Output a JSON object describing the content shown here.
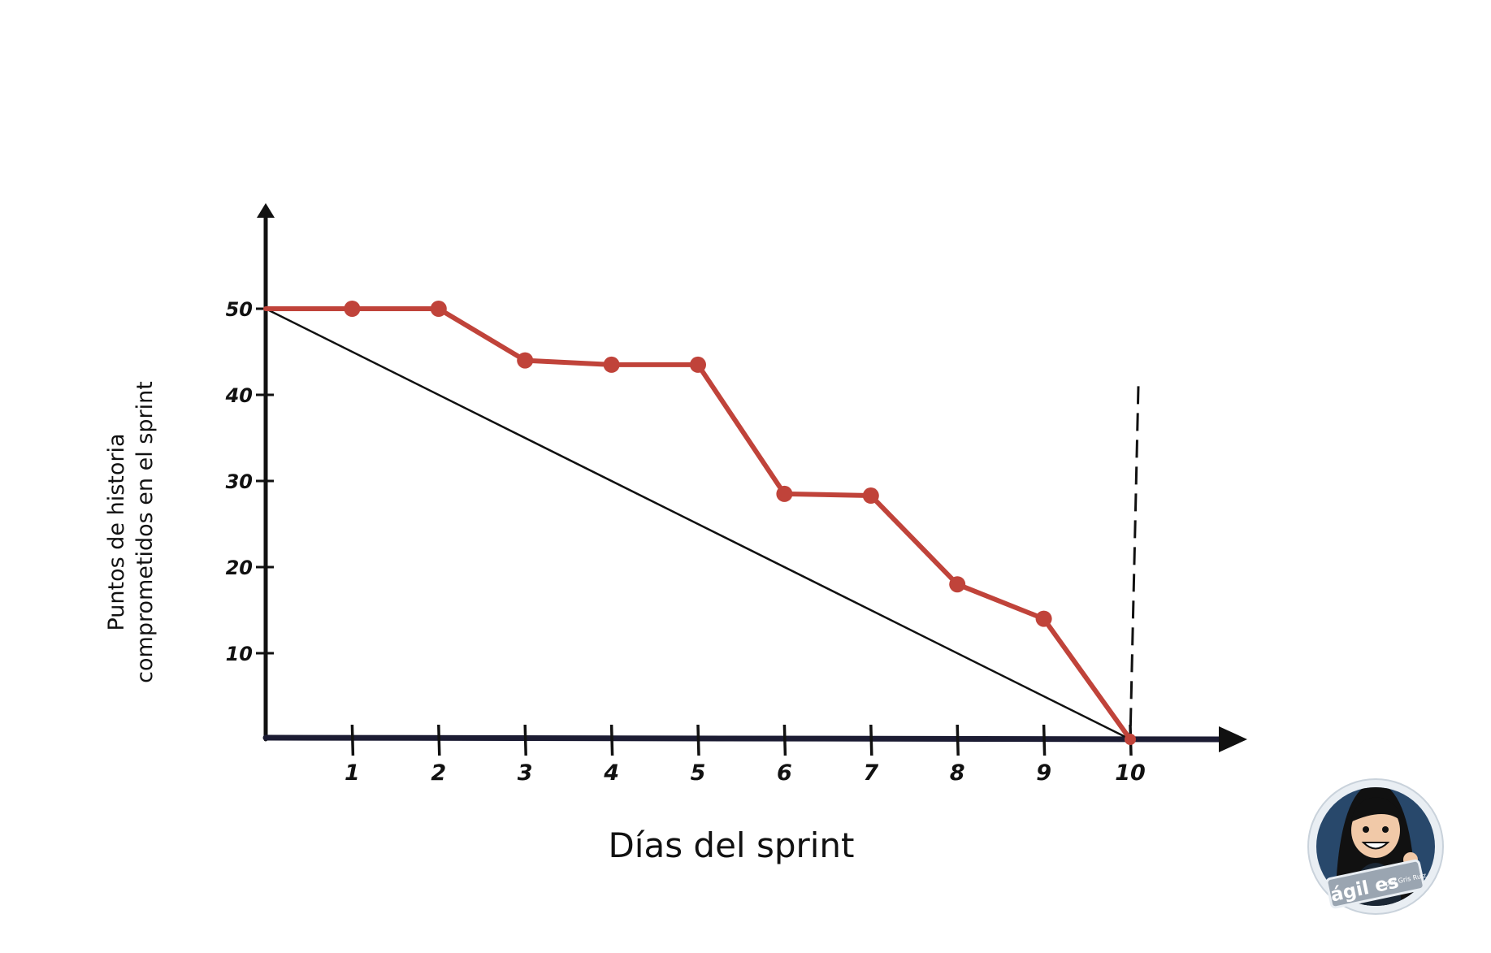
{
  "chart_data": {
    "type": "line",
    "xlabel": "Días del sprint",
    "ylabel_lines": [
      "Puntos de historia",
      "comprometidos en el sprint"
    ],
    "x_ticks": [
      1,
      2,
      3,
      4,
      5,
      6,
      7,
      8,
      9,
      10
    ],
    "y_ticks": [
      10,
      20,
      30,
      40,
      50
    ],
    "xlim": [
      0,
      11.3
    ],
    "ylim": [
      0,
      60
    ],
    "grid": false,
    "legend": "none",
    "colors": {
      "actual": "#c0433a",
      "ideal": "#111111",
      "axis": "#1c1c33",
      "marker_line": "#111111"
    },
    "series": [
      {
        "x": [
          0,
          1,
          2,
          3,
          4,
          5,
          6,
          7,
          8,
          9,
          10
        ],
        "y": [
          50,
          50,
          50,
          44,
          43.5,
          43.5,
          28.5,
          28.3,
          18,
          14,
          0
        ]
      },
      {
        "x": [
          0,
          10
        ],
        "y": [
          50,
          0
        ]
      }
    ],
    "vertical_marker": {
      "x": 10,
      "y_top": 41,
      "style": "dashed"
    }
  },
  "logo": {
    "text": "ágil es",
    "small_text": "por Gris Ruiz",
    "colors": {
      "ring": "#e9eef3",
      "fill": "#28486b"
    }
  }
}
